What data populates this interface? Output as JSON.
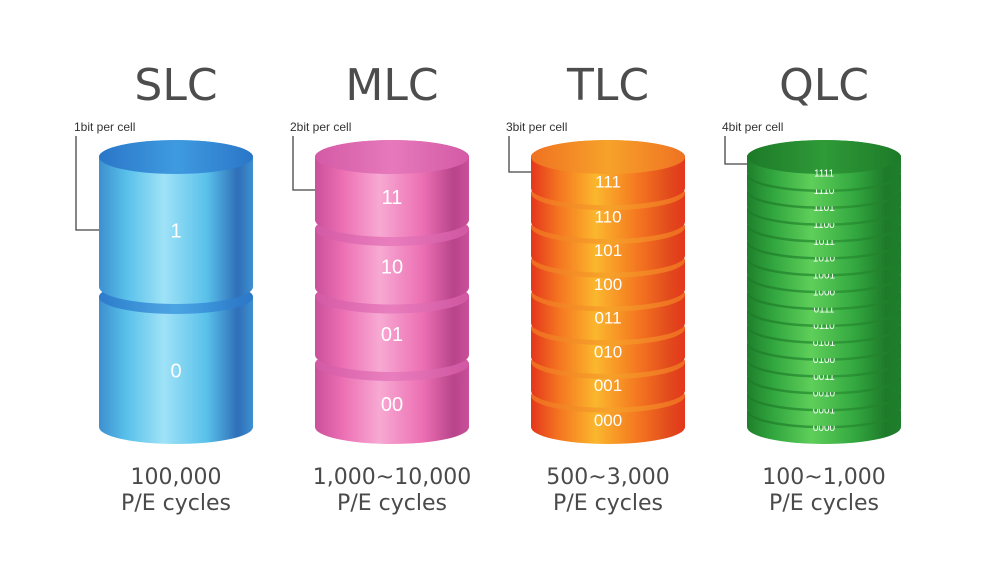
{
  "columns": [
    {
      "id": "slc",
      "title": "SLC",
      "bits_label": "1bit per cell",
      "levels": [
        "1",
        "0"
      ],
      "cycles": "100,000",
      "cycles_unit": "P/E cycles",
      "colors": {
        "edge": "#3d8fd0",
        "mid": "#59c1ea",
        "hi": "#9fe2f7",
        "dark": "#2f6fb8",
        "top": "#3f9be0",
        "topDark": "#2a76c8"
      }
    },
    {
      "id": "mlc",
      "title": "MLC",
      "bits_label": "2bit per cell",
      "levels": [
        "11",
        "10",
        "01",
        "00"
      ],
      "cycles": "1,000~10,000",
      "cycles_unit": "P/E cycles",
      "colors": {
        "edge": "#c9509a",
        "mid": "#ec6fb3",
        "hi": "#f7a9d3",
        "dark": "#b8448a",
        "top": "#e679bb",
        "topDark": "#d45aa6"
      }
    },
    {
      "id": "tlc",
      "title": "TLC",
      "bits_label": "3bit per cell",
      "levels": [
        "111",
        "110",
        "101",
        "100",
        "011",
        "010",
        "001",
        "000"
      ],
      "cycles": "500~3,000",
      "cycles_unit": "P/E cycles",
      "colors": {
        "edge": "#e4361c",
        "mid": "#f47520",
        "hi": "#fbb72d",
        "dark": "#e24a1c",
        "top": "#f6a22a",
        "topDark": "#f07222"
      }
    },
    {
      "id": "qlc",
      "title": "QLC",
      "bits_label": "4bit per cell",
      "levels": [
        "1111",
        "1110",
        "1101",
        "1100",
        "1011",
        "1010",
        "1001",
        "1000",
        "0111",
        "0110",
        "0101",
        "0100",
        "0011",
        "0010",
        "0001",
        "0000"
      ],
      "cycles": "100~1,000",
      "cycles_unit": "P/E cycles",
      "colors": {
        "edge": "#1f7f2c",
        "mid": "#33a840",
        "hi": "#5fcf5a",
        "dark": "#1e7a2a",
        "top": "#2f9a38",
        "topDark": "#1d7a28"
      }
    }
  ]
}
